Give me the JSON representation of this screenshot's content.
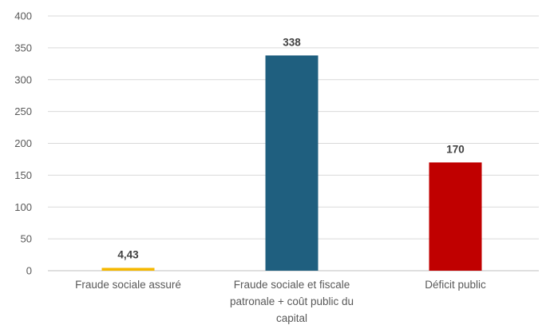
{
  "chart_data": {
    "type": "bar",
    "title": "",
    "xlabel": "",
    "ylabel": "",
    "ylim": [
      0,
      400
    ],
    "yticks": [
      0,
      50,
      100,
      150,
      200,
      250,
      300,
      350,
      400
    ],
    "ytick_labels": [
      "0",
      "50",
      "100",
      "150",
      "200",
      "250",
      "300",
      "350",
      "400"
    ],
    "grid": true,
    "legend": "none",
    "categories": [
      "Fraude sociale assuré",
      "Fraude sociale et fiscale patronale + coût public du capital",
      "Déficit public"
    ],
    "category_lines": [
      [
        "Fraude sociale assuré"
      ],
      [
        "Fraude sociale et fiscale",
        "patronale + coût public du",
        "capital"
      ],
      [
        "Déficit public"
      ]
    ],
    "values": [
      4.43,
      338,
      170
    ],
    "data_labels": [
      "4,43",
      "338",
      "170"
    ],
    "colors": [
      "#f5b800",
      "#1f5f7f",
      "#c00000"
    ]
  }
}
